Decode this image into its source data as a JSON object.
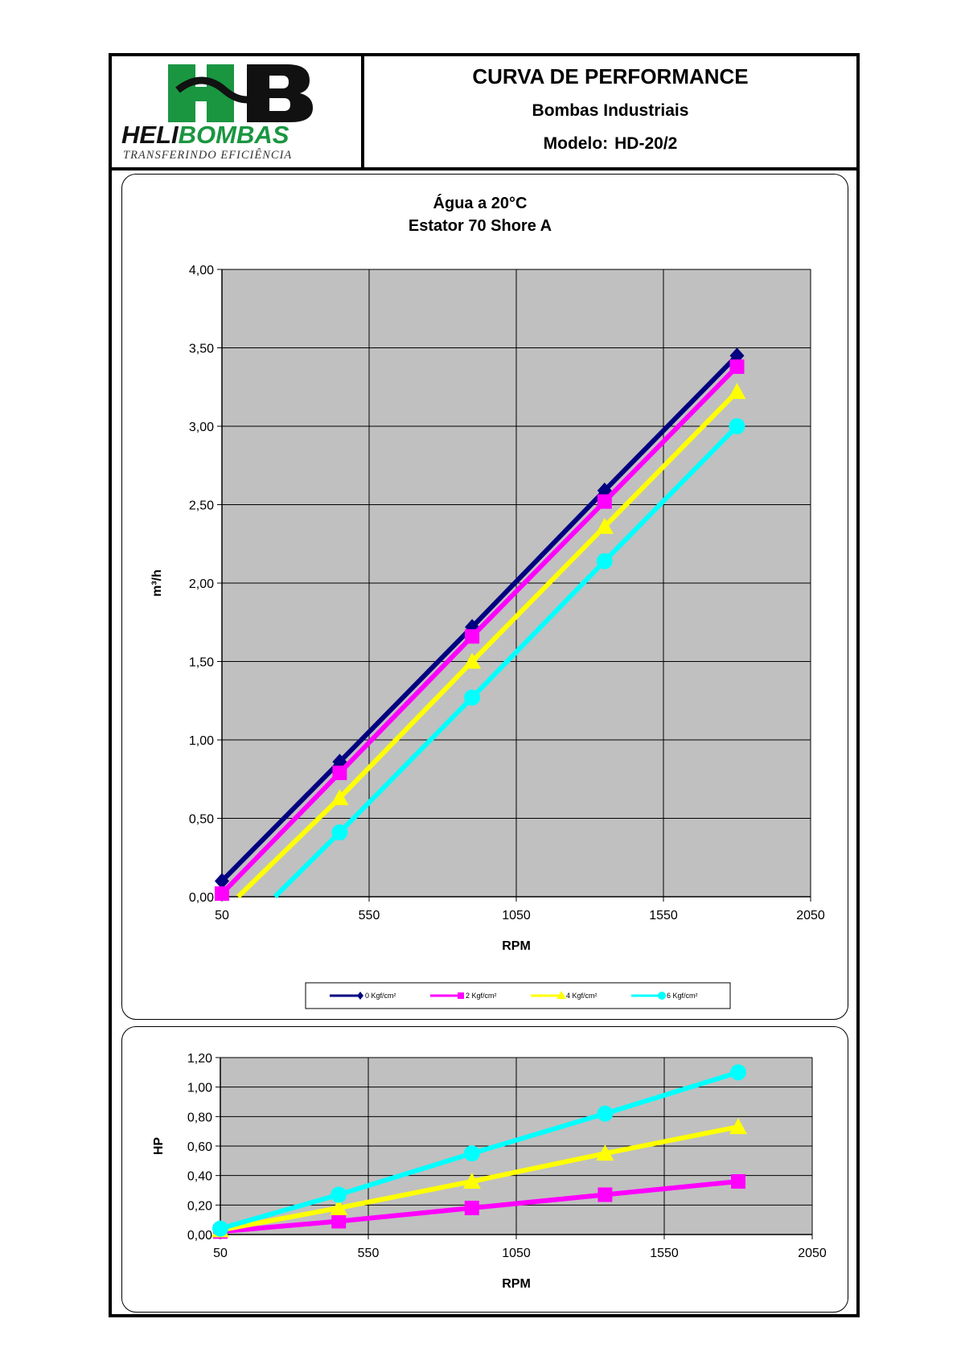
{
  "header": {
    "logo": {
      "brand": "HELIBOMBAS",
      "monogram": "HB",
      "tagline": "TRANSFERINDO EFICIÊNCIA"
    },
    "title": "CURVA DE PERFORMANCE",
    "subtitle": "Bombas Industriais",
    "model_label": "Modelo:",
    "model_value": "HD-20/2"
  },
  "colors": {
    "plot_bg": "#c0c0c0",
    "navy": "#000080",
    "magenta": "#ff00ff",
    "yellow": "#ffff00",
    "cyan": "#00ffff",
    "logo_green": "#1a9641"
  },
  "chart_data": [
    {
      "type": "line",
      "title": "Água a 20°C",
      "subtitle": "Estator 70 Shore A",
      "xlabel": "RPM",
      "ylabel": "m³/h",
      "xlim": [
        50,
        2050
      ],
      "ylim": [
        0,
        4
      ],
      "x_ticks": [
        "50",
        "550",
        "1050",
        "1550",
        "2050"
      ],
      "y_ticks": [
        "0,00",
        "0,50",
        "1,00",
        "1,50",
        "2,00",
        "2,50",
        "3,00",
        "3,50",
        "4,00"
      ],
      "grid": true,
      "legend_position": "bottom",
      "series": [
        {
          "name": "0 Kgf/cm²",
          "color": "#000080",
          "marker": "diamond",
          "x": [
            50,
            450,
            900,
            1350,
            1800
          ],
          "y": [
            0.1,
            0.86,
            1.72,
            2.59,
            3.45
          ]
        },
        {
          "name": "2 Kgf/cm²",
          "color": "#ff00ff",
          "marker": "square",
          "x": [
            50,
            450,
            900,
            1350,
            1800
          ],
          "y": [
            0.02,
            0.79,
            1.66,
            2.52,
            3.38
          ]
        },
        {
          "name": "4 Kgf/cm²",
          "color": "#ffff00",
          "marker": "triangle",
          "x": [
            105,
            450,
            900,
            1350,
            1800
          ],
          "y": [
            0,
            0.63,
            1.5,
            2.36,
            3.22
          ]
        },
        {
          "name": "6 Kgf/cm²",
          "color": "#00ffff",
          "marker": "circle",
          "x": [
            230,
            450,
            900,
            1350,
            1800
          ],
          "y": [
            0,
            0.41,
            1.27,
            2.14,
            3.0
          ]
        }
      ]
    },
    {
      "type": "line",
      "xlabel": "RPM",
      "ylabel": "HP",
      "xlim": [
        50,
        2050
      ],
      "ylim": [
        0,
        1.2
      ],
      "x_ticks": [
        "50",
        "550",
        "1050",
        "1550",
        "2050"
      ],
      "y_ticks": [
        "0,00",
        "0,20",
        "0,40",
        "0,60",
        "0,80",
        "1,00",
        "1,20"
      ],
      "grid": true,
      "series": [
        {
          "color": "#ff00ff",
          "marker": "square",
          "x": [
            50,
            450,
            900,
            1350,
            1800
          ],
          "y": [
            0.02,
            0.09,
            0.18,
            0.27,
            0.36
          ]
        },
        {
          "color": "#ffff00",
          "marker": "triangle",
          "x": [
            50,
            450,
            900,
            1350,
            1800
          ],
          "y": [
            0.03,
            0.18,
            0.36,
            0.55,
            0.73
          ]
        },
        {
          "color": "#00ffff",
          "marker": "circle",
          "x": [
            50,
            450,
            900,
            1350,
            1800
          ],
          "y": [
            0.04,
            0.27,
            0.55,
            0.82,
            1.1
          ]
        }
      ]
    }
  ]
}
